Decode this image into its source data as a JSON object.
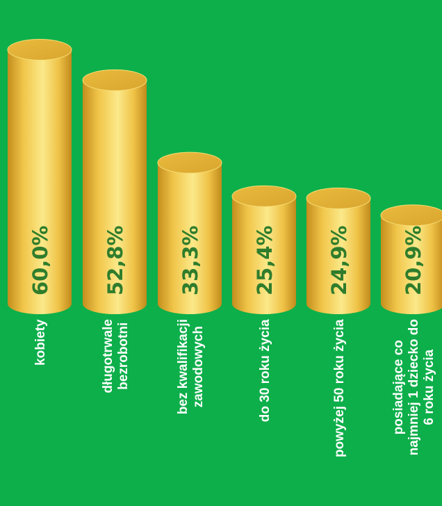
{
  "chart_data": {
    "type": "bar",
    "title": "",
    "xlabel": "",
    "ylabel": "",
    "ylim": [
      0,
      66
    ],
    "categories": [
      [
        "kobiety"
      ],
      [
        "długotrwale",
        "bezrobotni"
      ],
      [
        "bez kwalifikacji",
        "zawodowych"
      ],
      [
        "do 30 roku życia"
      ],
      [
        "powyżej 50 roku życia"
      ],
      [
        "posiadające co",
        "najmniej 1 dziecko do",
        "6 roku życia"
      ]
    ],
    "values": [
      60.0,
      52.8,
      33.3,
      25.4,
      24.9,
      20.9
    ],
    "value_labels": [
      "60,0%",
      "52,8%",
      "33,3%",
      "25,4%",
      "24,9%",
      "20,9%"
    ]
  },
  "colors": {
    "background": "#0daf4a",
    "bar_light": "#fbe98a",
    "bar_mid": "#f1c64a",
    "bar_dark": "#c48e1d",
    "value_text": "#2f7d2c",
    "category_text": "#ffffff"
  }
}
